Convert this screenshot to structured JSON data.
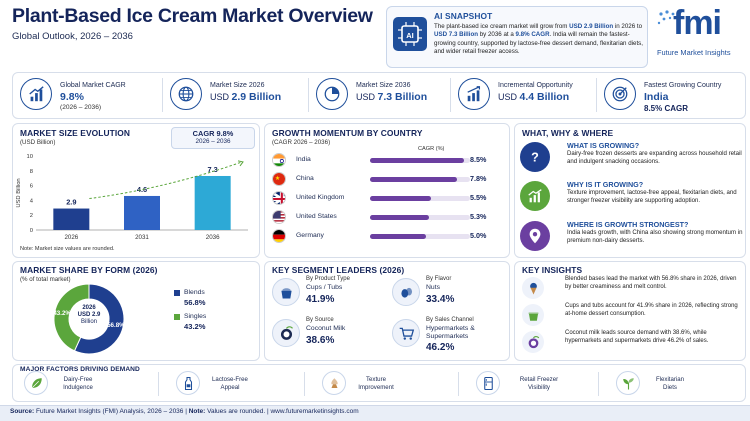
{
  "header": {
    "title": "Plant-Based Ice Cream Market Overview",
    "subtitle": "Global Outlook, 2026 – 2036"
  },
  "snapshot": {
    "label": "AI SNAPSHOT",
    "icon": "ai-chip-icon",
    "p1": "The plant-based ice cream market will grow from ",
    "v1": "USD 2.9 Billion",
    "p2": " in 2026 to ",
    "v2": "USD 7.3 Billion",
    "p3": " by 2036 at a ",
    "v3": "9.8% CAGR",
    "p4": ". India will remain the fastest-growing country, supported by lactose-free dessert demand, flexitarian diets, and wider retail freezer access."
  },
  "logo": {
    "mark": "fmi",
    "name": "Future Market Insights"
  },
  "kpis": [
    {
      "label": "Global Market CAGR",
      "value": "9.8%",
      "note": "(2026 – 2036)",
      "icon": "growth-chart-icon"
    },
    {
      "label": "Market Size 2026",
      "prefix": "USD ",
      "value": "2.9 Billion",
      "icon": "globe-icon"
    },
    {
      "label": "Market Size 2036",
      "prefix": "USD ",
      "value": "7.3 Billion",
      "icon": "pie-chart-icon"
    },
    {
      "label": "Incremental Opportunity",
      "prefix": "USD ",
      "value": "4.4 Billion",
      "icon": "rising-bars-icon"
    },
    {
      "label": "Fastest Growing Country",
      "value": "India",
      "note": "8.5% CAGR",
      "icon": "target-icon"
    }
  ],
  "evolution": {
    "title": "MARKET SIZE EVOLUTION",
    "unit": "(USD Billion)",
    "cagr_label": "CAGR  9.8%",
    "cagr_period": "2026 – 2036",
    "note": "Note: Market size values are rounded."
  },
  "chart_data": {
    "type": "bar",
    "categories": [
      "2026",
      "2031",
      "2036"
    ],
    "values": [
      2.9,
      4.6,
      7.3
    ],
    "labels": [
      "2.9",
      "4.6",
      "7.3"
    ],
    "ylabel": "USD Billion",
    "ylim": [
      0,
      10
    ],
    "yticks": [
      "0",
      "2",
      "4",
      "6",
      "8",
      "10"
    ],
    "title": "MARKET SIZE EVOLUTION"
  },
  "momentum": {
    "title": "GROWTH MOMENTUM BY COUNTRY",
    "period": "(CAGR 2026 – 2036)",
    "col": "CAGR (%)",
    "rows": [
      {
        "country": "India",
        "label": "8.5%",
        "value": 8.5
      },
      {
        "country": "China",
        "label": "7.8%",
        "value": 7.8
      },
      {
        "country": "United Kingdom",
        "label": "5.5%",
        "value": 5.5
      },
      {
        "country": "United States",
        "label": "5.3%",
        "value": 5.3
      },
      {
        "country": "Germany",
        "label": "5.0%",
        "value": 5.0
      }
    ]
  },
  "www": {
    "title": "WHAT, WHY & WHERE",
    "items": [
      {
        "q": "WHAT IS GROWING?",
        "a": "Dairy-free frozen desserts are expanding across household retail and indulgent snacking occasions.",
        "icon": "question-icon"
      },
      {
        "q": "WHY IS IT GROWING?",
        "a": "Texture improvement, lactose-free appeal, flexitarian diets, and stronger freezer visibility are supporting adoption.",
        "icon": "trend-up-icon"
      },
      {
        "q": "WHERE IS GROWTH STRONGEST?",
        "a": "India leads growth, with China also showing strong momentum in premium non-dairy desserts.",
        "icon": "location-pin-icon"
      }
    ]
  },
  "share": {
    "title": "MARKET SHARE BY FORM (2026)",
    "unit": "(% of total market)",
    "center1": "2026",
    "center2": "USD 2.9",
    "center3": "Billion",
    "slices": [
      {
        "name": "Blends",
        "label": "56.8%",
        "value": 56.8,
        "color": "#1f3f8f"
      },
      {
        "name": "Singles",
        "label": "43.2%",
        "value": 43.2,
        "color": "#5ba63c"
      }
    ]
  },
  "leaders": {
    "title": "KEY SEGMENT LEADERS (2026)",
    "items": [
      {
        "cat": "By Product Type",
        "name": "Cups / Tubs",
        "value": "41.9%",
        "icon": "ice-cream-cup-icon"
      },
      {
        "cat": "By Flavor",
        "name": "Nuts",
        "value": "33.4%",
        "icon": "nuts-icon"
      },
      {
        "cat": "By Source",
        "name": "Coconut Milk",
        "value": "38.6%",
        "icon": "coconut-icon"
      },
      {
        "cat": "By Sales Channel",
        "name": "Hypermarkets & Supermarkets",
        "value": "46.2%",
        "icon": "shopping-cart-icon"
      }
    ]
  },
  "insights": {
    "title": "KEY INSIGHTS",
    "items": [
      {
        "text": "Blended bases lead the market with 56.8% share in 2026, driven by better creaminess and melt control.",
        "icon": "ice-cream-cone-icon"
      },
      {
        "text": "Cups and tubs account for 41.9% share in 2026, reflecting strong at-home dessert consumption.",
        "icon": "ice-cream-tub-icon"
      },
      {
        "text": "Coconut milk leads source demand with 38.6%, while hypermarkets and supermarkets drive 46.2% of sales.",
        "icon": "coconut-icon"
      }
    ]
  },
  "factors": {
    "title": "MAJOR FACTORS DRIVING DEMAND",
    "items": [
      {
        "label": "Dairy-Free Indulgence",
        "l1": "Dairy-Free",
        "l2": "Indulgence",
        "icon": "leaf-icon"
      },
      {
        "label": "Lactose-Free Appeal",
        "l1": "Lactose-Free",
        "l2": "Appeal",
        "icon": "milk-bottle-icon"
      },
      {
        "label": "Texture Improvement",
        "l1": "Texture",
        "l2": "Improvement",
        "icon": "texture-swirl-icon"
      },
      {
        "label": "Retail Freezer Visibility",
        "l1": "Retail Freezer",
        "l2": "Visibility",
        "icon": "freezer-icon"
      },
      {
        "label": "Flexitarian Diets",
        "l1": "Flexitarian",
        "l2": "Diets",
        "icon": "plant-icon"
      }
    ]
  },
  "footer": {
    "source_label": "Source:",
    "source": " Future Market Insights (FMI) Analysis, 2026 – 2036 | ",
    "note_label": "Note:",
    "note": " Values are rounded.  |  www.futuremarketinsights.com"
  },
  "colors": {
    "navy": "#14245a",
    "blue": "#1f4f9b",
    "green": "#5ba63c",
    "purple": "#6b3fa0"
  }
}
